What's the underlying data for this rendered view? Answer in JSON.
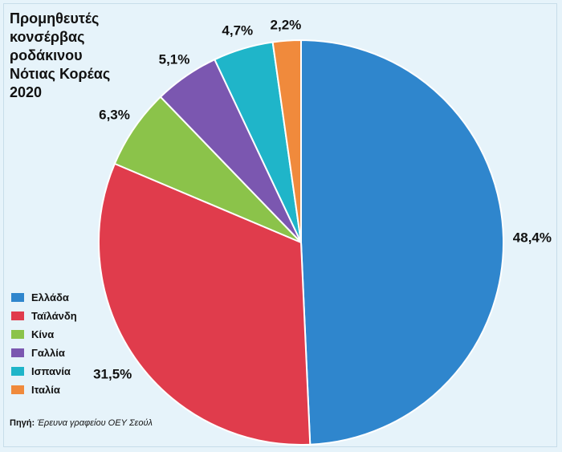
{
  "chart_data": {
    "type": "pie",
    "title": [
      "Προμηθευτές",
      "κονσέρβας",
      "ροδάκινου",
      "Νότιας Κορέας",
      "2020"
    ],
    "slices": [
      {
        "label": "Ελλάδα",
        "value": 48.4,
        "text": "48,4%",
        "color": "#2f86cd"
      },
      {
        "label": "Ταϊλάνδη",
        "value": 31.5,
        "text": "31,5%",
        "color": "#e03c4c"
      },
      {
        "label": "Κίνα",
        "value": 6.3,
        "text": "6,3%",
        "color": "#8bc34a"
      },
      {
        "label": "Γαλλία",
        "value": 5.1,
        "text": "5,1%",
        "color": "#7b57b0"
      },
      {
        "label": "Ισπανία",
        "value": 4.7,
        "text": "4,7%",
        "color": "#1fb5c9"
      },
      {
        "label": "Ιταλία",
        "value": 2.2,
        "text": "2,2%",
        "color": "#f08a3c"
      }
    ],
    "legend_position": "bottom-left"
  },
  "source": {
    "label": "Πηγή:",
    "text": "Έρευνα γραφείου ΟΕΥ Σεούλ"
  }
}
